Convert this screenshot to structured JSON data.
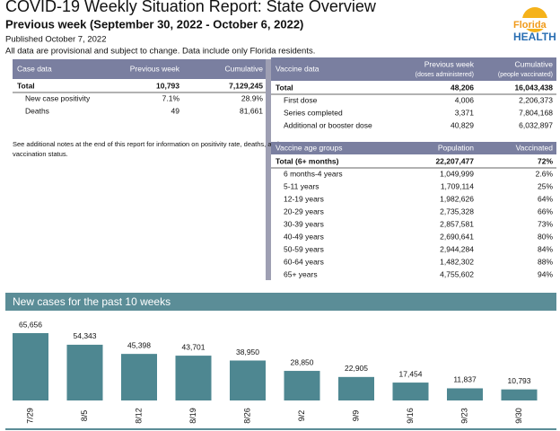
{
  "header": {
    "title": "COVID-19 Weekly Situation Report: State Overview",
    "subtitle": "Previous week (September 30, 2022 - October 6, 2022)",
    "published": "Published October 7, 2022",
    "disclaimer": "All data are provisional and subject to change. Data include only Florida residents.",
    "logo_top": "Florida",
    "logo_bottom": "HEALTH"
  },
  "case_table": {
    "columns": [
      "Case data",
      "Previous week",
      "Cumulative"
    ],
    "rows": [
      [
        "Total",
        "10,793",
        "7,129,245"
      ],
      [
        "New case positivity",
        "7.1%",
        "28.9%"
      ],
      [
        "Deaths",
        "49",
        "81,661"
      ]
    ]
  },
  "note": "See additional notes at the end of this report for information on positivity rate, deaths, and vaccination status.",
  "vaccine_table": {
    "columns": [
      "Vaccine data",
      "Previous week",
      "Cumulative"
    ],
    "column_notes": [
      "(doses administered)",
      "(people vaccinated)"
    ],
    "rows": [
      [
        "Total",
        "48,206",
        "16,043,438"
      ],
      [
        "First dose",
        "4,006",
        "2,206,373"
      ],
      [
        "Series completed",
        "3,371",
        "7,804,168"
      ],
      [
        "Additional or booster dose",
        "40,829",
        "6,032,897"
      ]
    ]
  },
  "age_table": {
    "columns": [
      "Vaccine age groups",
      "Population",
      "Vaccinated"
    ],
    "rows": [
      [
        "Total (6+ months)",
        "22,207,477",
        "72%"
      ],
      [
        "6 months-4 years",
        "1,049,999",
        "2.6%"
      ],
      [
        "5-11 years",
        "1,709,114",
        "25%"
      ],
      [
        "12-19 years",
        "1,982,626",
        "64%"
      ],
      [
        "20-29 years",
        "2,735,328",
        "66%"
      ],
      [
        "30-39 years",
        "2,857,581",
        "73%"
      ],
      [
        "40-49 years",
        "2,690,641",
        "80%"
      ],
      [
        "50-59 years",
        "2,944,284",
        "84%"
      ],
      [
        "60-64 years",
        "1,482,302",
        "88%"
      ],
      [
        "65+ years",
        "4,755,602",
        "94%"
      ]
    ]
  },
  "chart_data": {
    "type": "bar",
    "title": "New cases for the past 10 weeks",
    "categories": [
      "7/29",
      "8/5",
      "8/12",
      "8/19",
      "8/26",
      "9/2",
      "9/9",
      "9/16",
      "9/23",
      "9/30"
    ],
    "values": [
      65656,
      54343,
      45398,
      43701,
      38950,
      28850,
      22905,
      17454,
      11837,
      10793
    ],
    "value_labels": [
      "65,656",
      "54,343",
      "45,398",
      "43,701",
      "38,950",
      "28,850",
      "22,905",
      "17,454",
      "11,837",
      "10,793"
    ],
    "color": "#4e8791"
  }
}
